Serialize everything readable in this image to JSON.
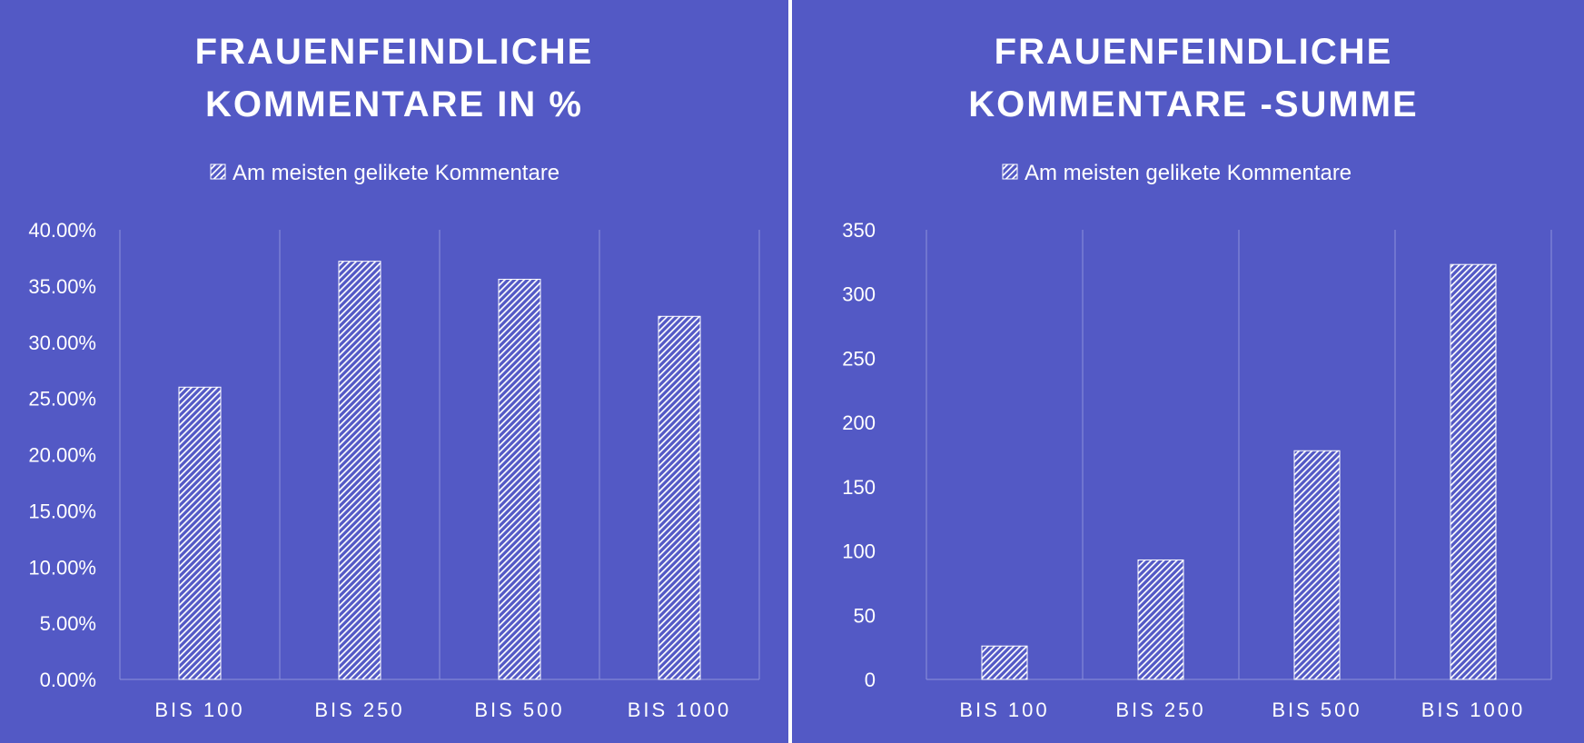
{
  "colors": {
    "background": "#5359c5",
    "bar_fill": "#ffffff",
    "text": "#ffffff",
    "gridline": "#8c91dc"
  },
  "chart_data": [
    {
      "type": "bar",
      "title_lines": [
        "FRAUENFEINDLICHE",
        "KOMMENTARE IN %"
      ],
      "legend": "Am meisten gelikete Kommentare",
      "legend_position": "top",
      "categories": [
        "BIS 100",
        "BIS 250",
        "BIS 500",
        "BIS 1000"
      ],
      "series": [
        {
          "name": "Am meisten gelikete Kommentare",
          "values": [
            26.0,
            37.2,
            35.6,
            32.3
          ]
        }
      ],
      "ylim": [
        0,
        40
      ],
      "yticks": [
        0,
        5,
        10,
        15,
        20,
        25,
        30,
        35,
        40
      ],
      "ytick_labels": [
        "0.00%",
        "5.00%",
        "10.00%",
        "15.00%",
        "20.00%",
        "25.00%",
        "30.00%",
        "35.00%",
        "40.00%"
      ],
      "xlabel": "",
      "ylabel": "",
      "grid": "vertical",
      "bar_pattern": "hatched"
    },
    {
      "type": "bar",
      "title_lines": [
        "FRAUENFEINDLICHE",
        "KOMMENTARE -SUMME"
      ],
      "legend": "Am meisten gelikete Kommentare",
      "legend_position": "top",
      "categories": [
        "BIS 100",
        "BIS 250",
        "BIS 500",
        "BIS 1000"
      ],
      "series": [
        {
          "name": "Am meisten gelikete Kommentare",
          "values": [
            26,
            93,
            178,
            323
          ]
        }
      ],
      "ylim": [
        0,
        350
      ],
      "yticks": [
        0,
        50,
        100,
        150,
        200,
        250,
        300,
        350
      ],
      "ytick_labels": [
        "0",
        "50",
        "100",
        "150",
        "200",
        "250",
        "300",
        "350"
      ],
      "xlabel": "",
      "ylabel": "",
      "grid": "vertical",
      "bar_pattern": "hatched"
    }
  ]
}
